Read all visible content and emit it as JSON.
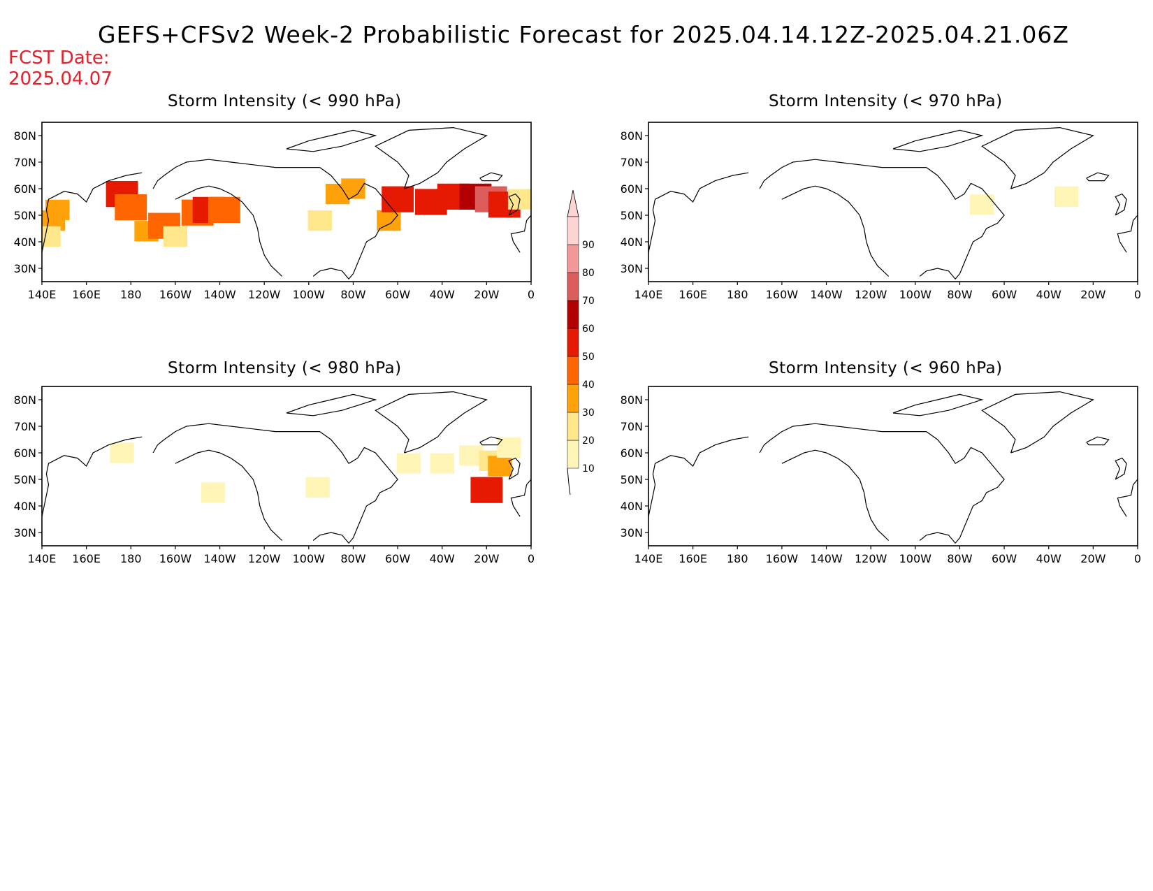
{
  "title": "GEFS+CFSv2 Week-2 Probabilistic Forecast for 2025.04.14.12Z-2025.04.21.06Z",
  "fcst_date_label": "FCST Date:",
  "fcst_date_value": "2025.04.07",
  "panels": [
    {
      "id": "p990",
      "title": "Storm Intensity (< 990 hPa)",
      "threshold_hpa": 990,
      "regions": [
        {
          "lon": 145,
          "lat": 48,
          "prob": 35
        },
        {
          "lon": 147,
          "lat": 52,
          "prob": 30
        },
        {
          "lon": 143,
          "lat": 42,
          "prob": 20
        },
        {
          "lon": 176,
          "lat": 58,
          "prob": 50
        },
        {
          "lon": 180,
          "lat": 53,
          "prob": 40
        },
        {
          "lon": 187,
          "lat": 44,
          "prob": 30
        },
        {
          "lon": 195,
          "lat": 46,
          "prob": 45
        },
        {
          "lon": 200,
          "lat": 42,
          "prob": 20
        },
        {
          "lon": 210,
          "lat": 51,
          "prob": 40
        },
        {
          "lon": 215,
          "lat": 52,
          "prob": 55
        },
        {
          "lon": 222,
          "lat": 52,
          "prob": 40
        },
        {
          "lon": 265,
          "lat": 48,
          "prob": 20
        },
        {
          "lon": 273,
          "lat": 58,
          "prob": 30
        },
        {
          "lon": 280,
          "lat": 60,
          "prob": 30
        },
        {
          "lon": 296,
          "lat": 48,
          "prob": 30
        },
        {
          "lon": 300,
          "lat": 56,
          "prob": 50
        },
        {
          "lon": 315,
          "lat": 55,
          "prob": 50
        },
        {
          "lon": 325,
          "lat": 57,
          "prob": 55
        },
        {
          "lon": 335,
          "lat": 57,
          "prob": 60
        },
        {
          "lon": 342,
          "lat": 56,
          "prob": 70
        },
        {
          "lon": 348,
          "lat": 54,
          "prob": 55
        },
        {
          "lon": 355,
          "lat": 56,
          "prob": 20
        }
      ]
    },
    {
      "id": "p970",
      "title": "Storm Intensity (< 970 hPa)",
      "threshold_hpa": 970,
      "regions": [
        {
          "lon": 290,
          "lat": 54,
          "prob": 10
        },
        {
          "lon": 328,
          "lat": 57,
          "prob": 10
        }
      ]
    },
    {
      "id": "p980",
      "title": "Storm Intensity (< 980 hPa)",
      "threshold_hpa": 980,
      "regions": [
        {
          "lon": 176,
          "lat": 60,
          "prob": 10
        },
        {
          "lon": 217,
          "lat": 45,
          "prob": 10
        },
        {
          "lon": 264,
          "lat": 47,
          "prob": 10
        },
        {
          "lon": 305,
          "lat": 56,
          "prob": 10
        },
        {
          "lon": 320,
          "lat": 56,
          "prob": 15
        },
        {
          "lon": 333,
          "lat": 59,
          "prob": 15
        },
        {
          "lon": 342,
          "lat": 57,
          "prob": 20
        },
        {
          "lon": 346,
          "lat": 55,
          "prob": 30
        },
        {
          "lon": 340,
          "lat": 46,
          "prob": 50
        },
        {
          "lon": 350,
          "lat": 62,
          "prob": 10
        }
      ]
    },
    {
      "id": "p960",
      "title": "Storm Intensity (< 960 hPa)",
      "threshold_hpa": 960,
      "regions": []
    }
  ],
  "map_extent": {
    "lon_min": 140,
    "lon_max": 360,
    "lat_min": 25,
    "lat_max": 85
  },
  "x_ticks": [
    "140E",
    "160E",
    "180",
    "160W",
    "140W",
    "120W",
    "100W",
    "80W",
    "60W",
    "40W",
    "20W",
    "0"
  ],
  "y_ticks": [
    "80N",
    "70N",
    "60N",
    "50N",
    "40N",
    "30N"
  ],
  "colorbar": {
    "labels": [
      "10",
      "20",
      "30",
      "40",
      "50",
      "60",
      "70",
      "80",
      "90"
    ],
    "colors": [
      "#fff5b6",
      "#ffe88c",
      "#ffa20a",
      "#ff6600",
      "#e61a00",
      "#b30000",
      "#dd5c5c",
      "#f29898",
      "#fcd4d4"
    ]
  }
}
